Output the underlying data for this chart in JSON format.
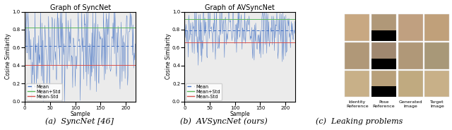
{
  "fig_width": 6.4,
  "fig_height": 1.84,
  "dpi": 100,
  "syncnet": {
    "title": "Graph of SyncNet",
    "n_samples": 220,
    "mean": 0.615,
    "std": 0.21,
    "seed": 42,
    "noise_scale": 1.5,
    "ylabel": "Cosine Similarity",
    "xlabel": "Sample",
    "ylim": [
      0.0,
      1.0
    ],
    "yticks": [
      0.0,
      0.2,
      0.4,
      0.6,
      0.8,
      1.0
    ],
    "xticks": [
      0,
      50,
      100,
      150,
      200
    ],
    "line_color": "#4472c4",
    "mean_color": "#4472c4",
    "mean_plus_color": "#5cb85c",
    "mean_minus_color": "#d9534f",
    "bg_color": "#ebebeb"
  },
  "avsyncnet": {
    "title": "Graph of AVSyncNet",
    "n_samples": 220,
    "mean": 0.79,
    "std": 0.13,
    "seed": 7,
    "noise_scale": 1.3,
    "ylabel": "Cosine Similarity",
    "xlabel": "Sample",
    "ylim": [
      0.0,
      1.0
    ],
    "yticks": [
      0.0,
      0.2,
      0.4,
      0.6,
      0.8,
      1.0
    ],
    "xticks": [
      0,
      50,
      100,
      150,
      200
    ],
    "line_color": "#4472c4",
    "mean_color": "#4472c4",
    "mean_plus_color": "#5cb85c",
    "mean_minus_color": "#d9534f",
    "bg_color": "#ebebeb"
  },
  "caption_a": "(a)  SyncNet [46]",
  "caption_b": "(b)  AVSyncNet (ours)",
  "caption_c": "(c)  Leaking problems",
  "col_labels": [
    "Identity\nReference",
    "Pose\nReference",
    "Generated\nImage",
    "Target\nImage"
  ],
  "face_colors_row0": [
    "#c8a882",
    "#b09878",
    "#c0a080",
    "#c0a07a"
  ],
  "face_colors_row1": [
    "#b09878",
    "#a08870",
    "#b09878",
    "#a89878"
  ],
  "face_colors_row2": [
    "#c8b088",
    "#b8a07a",
    "#c0aa80",
    "#c8b088"
  ],
  "title_fontsize": 7,
  "axis_fontsize": 5.5,
  "tick_fontsize": 5,
  "caption_fontsize": 8,
  "legend_fontsize": 4.8
}
